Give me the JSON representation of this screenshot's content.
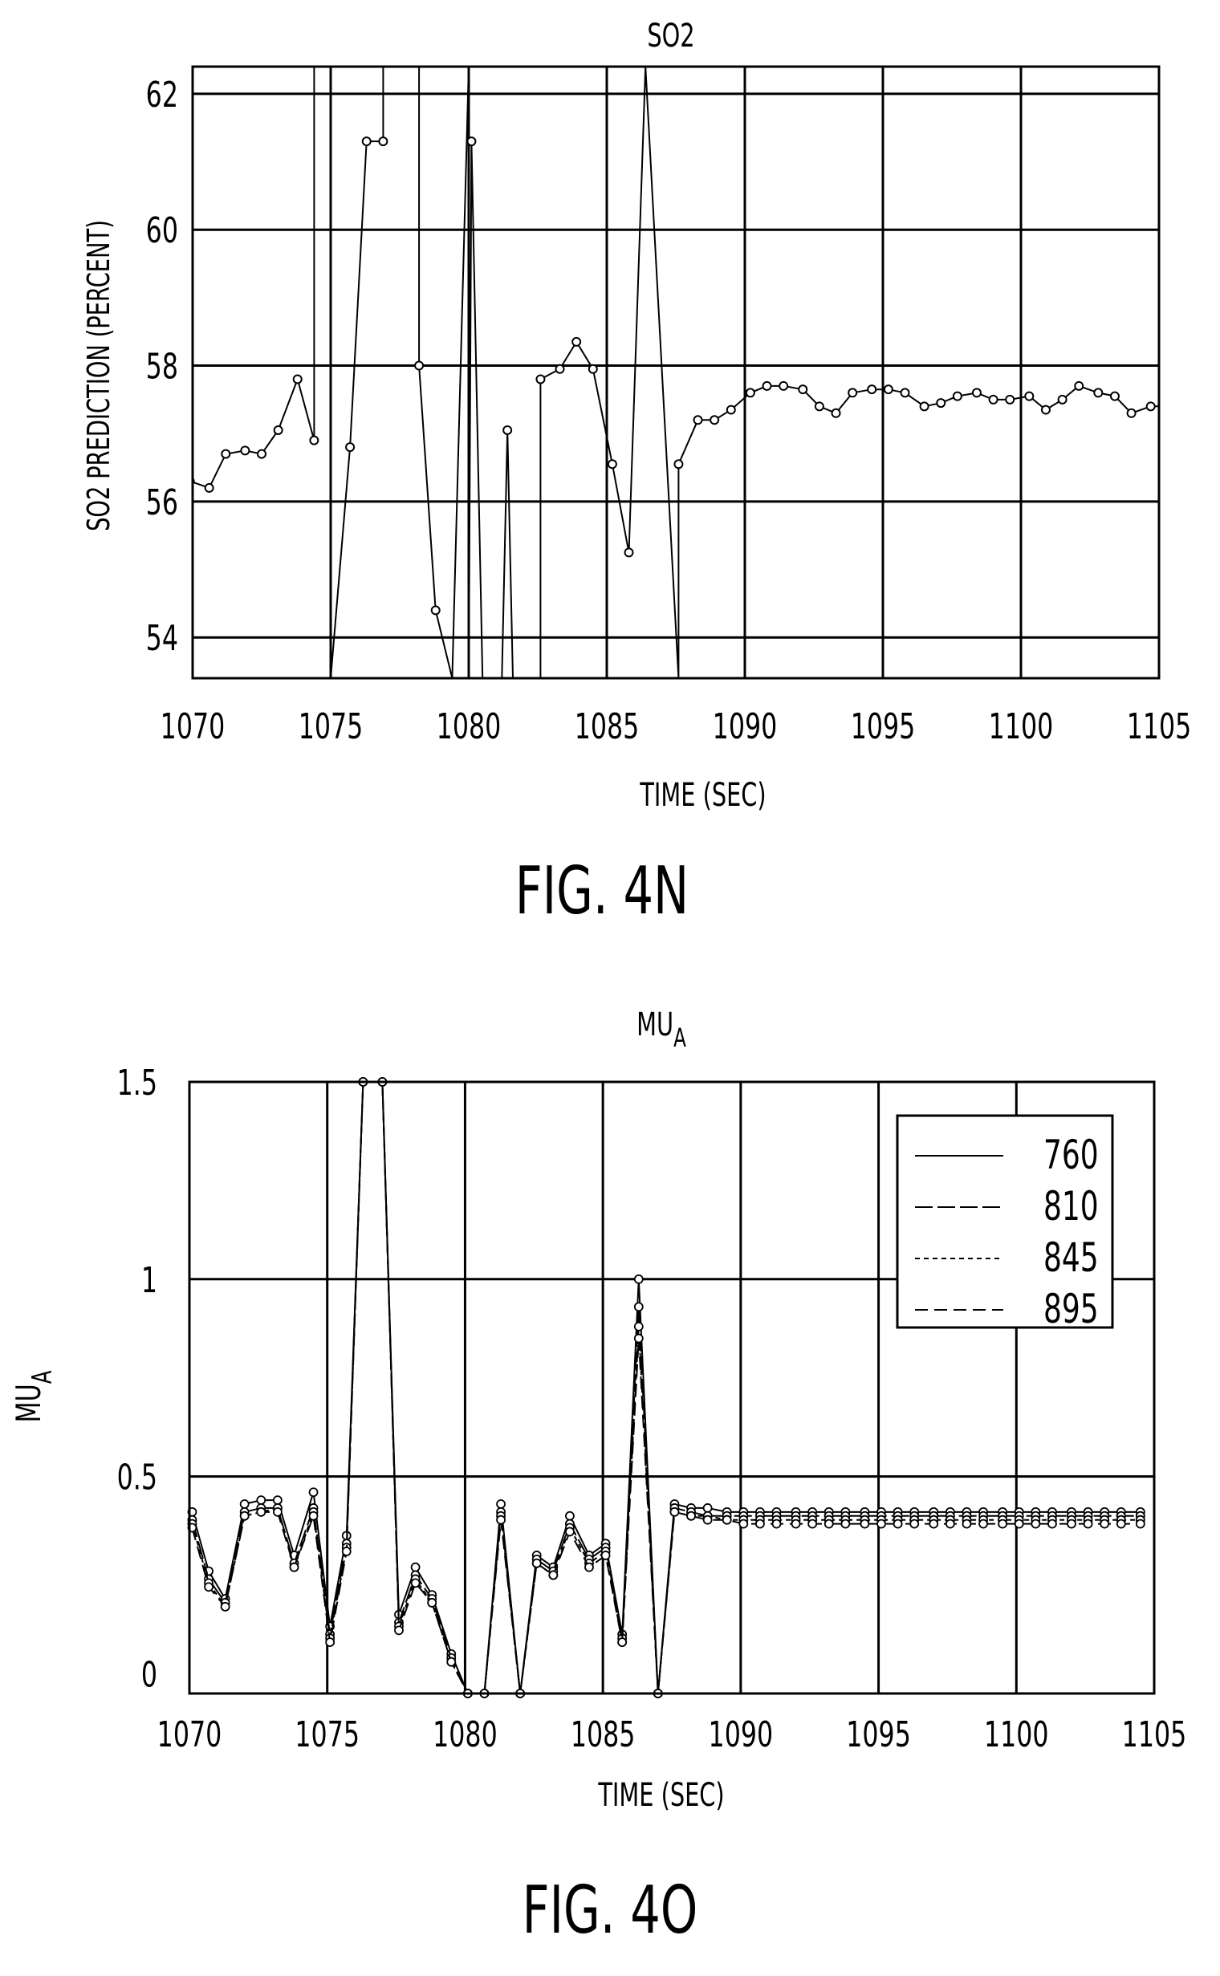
{
  "figures": [
    {
      "caption": "FIG. 4N",
      "chart_data": {
        "type": "line",
        "title": "SO2",
        "xlabel": "TIME (SEC)",
        "ylabel": "SO2 PREDICTION (PERCENT)",
        "xlim": [
          1070,
          1105
        ],
        "ylim": [
          53.4,
          62.4
        ],
        "xticks": [
          1070,
          1075,
          1080,
          1085,
          1090,
          1095,
          1100,
          1105
        ],
        "yticks": [
          54,
          56,
          58,
          60,
          62
        ],
        "grid": true,
        "series": [
          {
            "name": "",
            "x": [
              1069.9,
              1070.6,
              1071.2,
              1071.9,
              1072.5,
              1073.1,
              1073.8,
              1074.4,
              1074.4,
              1075.0,
              1075.0,
              1075.7,
              1076.3,
              1076.9,
              1076.9,
              1078.2,
              1078.2,
              1078.8,
              1079.4,
              1079.4,
              1080.0,
              1080.0,
              1080.1,
              1080.5,
              1080.5,
              1081.2,
              1081.4,
              1081.6,
              1081.6,
              1082.2,
              1082.6,
              1082.6,
              1083.3,
              1083.9,
              1084.5,
              1085.2,
              1085.8,
              1086.4,
              1086.4,
              1087.6,
              1087.6,
              1088.3,
              1088.9,
              1089.5,
              1090.2,
              1090.8,
              1091.4,
              1092.1,
              1092.7,
              1093.3,
              1093.9,
              1094.6,
              1095.2,
              1095.8,
              1096.5,
              1097.1,
              1097.7,
              1098.4,
              1099.0,
              1099.6,
              1100.3,
              1100.9,
              1101.5,
              1102.1,
              1102.8,
              1103.4,
              1104.0,
              1104.7,
              1105.3
            ],
            "y": [
              56.3,
              56.2,
              56.7,
              56.75,
              56.7,
              57.05,
              57.8,
              56.9,
              62.4,
              62.4,
              53.4,
              56.8,
              61.3,
              61.3,
              62.4,
              62.4,
              58.0,
              54.4,
              53.4,
              53.4,
              62.4,
              53.4,
              61.3,
              53.4,
              53.4,
              53.4,
              57.05,
              53.4,
              53.4,
              53.4,
              53.4,
              57.8,
              57.95,
              58.35,
              57.95,
              56.55,
              55.25,
              62.4,
              62.4,
              53.4,
              56.55,
              57.2,
              57.2,
              57.35,
              57.6,
              57.7,
              57.7,
              57.65,
              57.4,
              57.3,
              57.6,
              57.65,
              57.65,
              57.6,
              57.4,
              57.45,
              57.55,
              57.6,
              57.5,
              57.5,
              57.55,
              57.35,
              57.5,
              57.7,
              57.6,
              57.55,
              57.3,
              57.4,
              57.4
            ]
          }
        ]
      }
    },
    {
      "caption": "FIG. 4O",
      "chart_data": {
        "type": "line",
        "title": "MU",
        "title_subscript": "A",
        "xlabel": "TIME (SEC)",
        "ylabel": "MU",
        "ylabel_subscript": "A",
        "xlim": [
          1070,
          1105
        ],
        "ylim": [
          -0.05,
          1.5
        ],
        "xticks": [
          1070,
          1075,
          1080,
          1085,
          1090,
          1095,
          1100,
          1105
        ],
        "yticks": [
          0,
          0.5,
          1,
          1.5
        ],
        "ytick_labels": [
          "0",
          "0.5",
          "1",
          "1.5"
        ],
        "grid": true,
        "legend": {
          "position": "top-right"
        },
        "x": [
          1070.1,
          1070.7,
          1071.3,
          1072.0,
          1072.6,
          1073.2,
          1073.8,
          1074.5,
          1075.1,
          1075.7,
          1076.3,
          1077.0,
          1077.6,
          1078.2,
          1078.8,
          1079.5,
          1080.1,
          1080.7,
          1081.3,
          1082.0,
          1082.6,
          1083.2,
          1083.8,
          1084.5,
          1085.1,
          1085.7,
          1086.3,
          1087.0,
          1087.6,
          1088.2,
          1088.8,
          1089.5,
          1090.1,
          1090.7,
          1091.3,
          1092.0,
          1092.6,
          1093.2,
          1093.8,
          1094.5,
          1095.1,
          1095.7,
          1096.3,
          1097.0,
          1097.6,
          1098.2,
          1098.8,
          1099.5,
          1100.1,
          1100.7,
          1101.3,
          1102.0,
          1102.6,
          1103.2,
          1103.8,
          1104.5
        ],
        "series": [
          {
            "name": "760",
            "values": [
              0.41,
              0.26,
              0.19,
              0.43,
              0.44,
              0.44,
              0.3,
              0.46,
              0.12,
              0.35,
              1.5,
              1.5,
              0.15,
              0.27,
              0.2,
              0.05,
              -0.05,
              -0.05,
              0.43,
              -0.05,
              0.3,
              0.27,
              0.4,
              0.3,
              0.33,
              0.1,
              1.0,
              -0.05,
              0.43,
              0.42,
              0.42,
              0.41,
              0.41,
              0.41,
              0.41,
              0.41,
              0.41,
              0.41,
              0.41,
              0.41,
              0.41,
              0.41,
              0.41,
              0.41,
              0.41,
              0.41,
              0.41,
              0.41,
              0.41,
              0.41,
              0.41,
              0.41,
              0.41,
              0.41,
              0.41,
              0.41
            ]
          },
          {
            "name": "810",
            "values": [
              0.39,
              0.24,
              0.18,
              0.41,
              0.42,
              0.42,
              0.28,
              0.42,
              0.1,
              0.33,
              1.5,
              1.5,
              0.13,
              0.25,
              0.19,
              0.04,
              -0.05,
              -0.05,
              0.41,
              -0.05,
              0.29,
              0.26,
              0.38,
              0.29,
              0.32,
              0.09,
              0.93,
              -0.05,
              0.42,
              0.41,
              0.4,
              0.4,
              0.4,
              0.4,
              0.4,
              0.4,
              0.4,
              0.4,
              0.4,
              0.4,
              0.4,
              0.4,
              0.4,
              0.4,
              0.4,
              0.4,
              0.4,
              0.4,
              0.4,
              0.4,
              0.4,
              0.4,
              0.4,
              0.4,
              0.4,
              0.4
            ]
          },
          {
            "name": "845",
            "values": [
              0.38,
              0.23,
              0.17,
              0.4,
              0.41,
              0.42,
              0.27,
              0.41,
              0.09,
              0.32,
              1.5,
              1.5,
              0.12,
              0.24,
              0.18,
              0.03,
              -0.05,
              -0.05,
              0.4,
              -0.05,
              0.28,
              0.25,
              0.37,
              0.28,
              0.31,
              0.08,
              0.88,
              -0.05,
              0.41,
              0.4,
              0.4,
              0.39,
              0.39,
              0.39,
              0.39,
              0.39,
              0.39,
              0.39,
              0.39,
              0.39,
              0.39,
              0.39,
              0.39,
              0.39,
              0.39,
              0.39,
              0.39,
              0.39,
              0.39,
              0.39,
              0.39,
              0.39,
              0.39,
              0.39,
              0.39,
              0.39
            ]
          },
          {
            "name": "895",
            "values": [
              0.37,
              0.22,
              0.17,
              0.4,
              0.41,
              0.41,
              0.27,
              0.4,
              0.08,
              0.31,
              1.5,
              1.5,
              0.11,
              0.23,
              0.18,
              0.03,
              -0.05,
              -0.05,
              0.39,
              -0.05,
              0.28,
              0.25,
              0.36,
              0.27,
              0.3,
              0.08,
              0.85,
              -0.05,
              0.41,
              0.4,
              0.39,
              0.39,
              0.38,
              0.38,
              0.38,
              0.38,
              0.38,
              0.38,
              0.38,
              0.38,
              0.38,
              0.38,
              0.38,
              0.38,
              0.38,
              0.38,
              0.38,
              0.38,
              0.38,
              0.38,
              0.38,
              0.38,
              0.38,
              0.38,
              0.38,
              0.38
            ]
          }
        ]
      }
    }
  ]
}
